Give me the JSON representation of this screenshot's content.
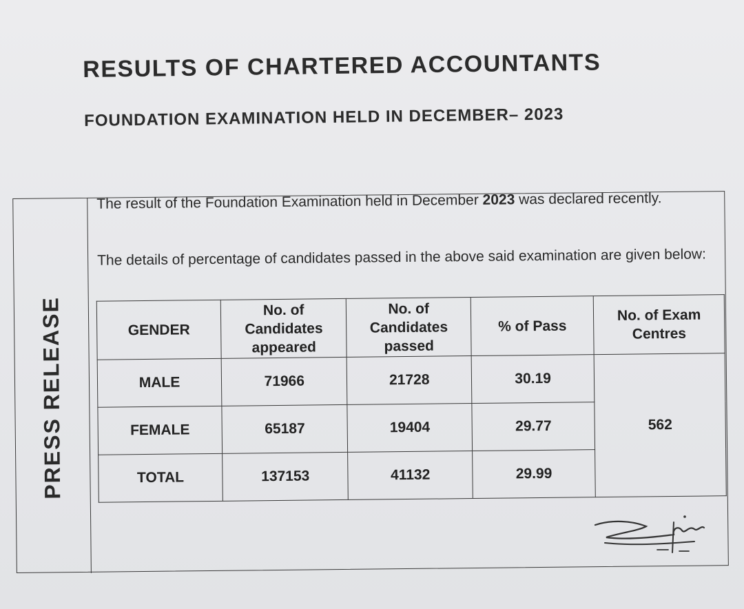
{
  "document": {
    "title": "RESULTS OF CHARTERED ACCOUNTANTS",
    "subtitle": "FOUNDATION EXAMINATION HELD IN DECEMBER– 2023",
    "side_label": "PRESS RELEASE",
    "para1_before": "The result of the Foundation Examination held in December ",
    "para1_year": "2023",
    "para1_after": " was declared recently.",
    "para2": "The details of percentage of candidates passed in the above said examination are given below:"
  },
  "table": {
    "headers": {
      "gender": "GENDER",
      "appeared": "No. of Candidates appeared",
      "passed": "No. of Candidates passed",
      "pass_pct": "% of Pass",
      "centres": "No. of Exam Centres"
    },
    "rows": [
      {
        "gender": "MALE",
        "appeared": "71966",
        "passed": "21728",
        "pass_pct": "30.19"
      },
      {
        "gender": "FEMALE",
        "appeared": "65187",
        "passed": "19404",
        "pass_pct": "29.77"
      },
      {
        "gender": "TOTAL",
        "appeared": "137153",
        "passed": "41132",
        "pass_pct": "29.99"
      }
    ],
    "centres_value": "562"
  },
  "colors": {
    "paper": "#e9eaec",
    "ink": "#2a2a2a"
  }
}
